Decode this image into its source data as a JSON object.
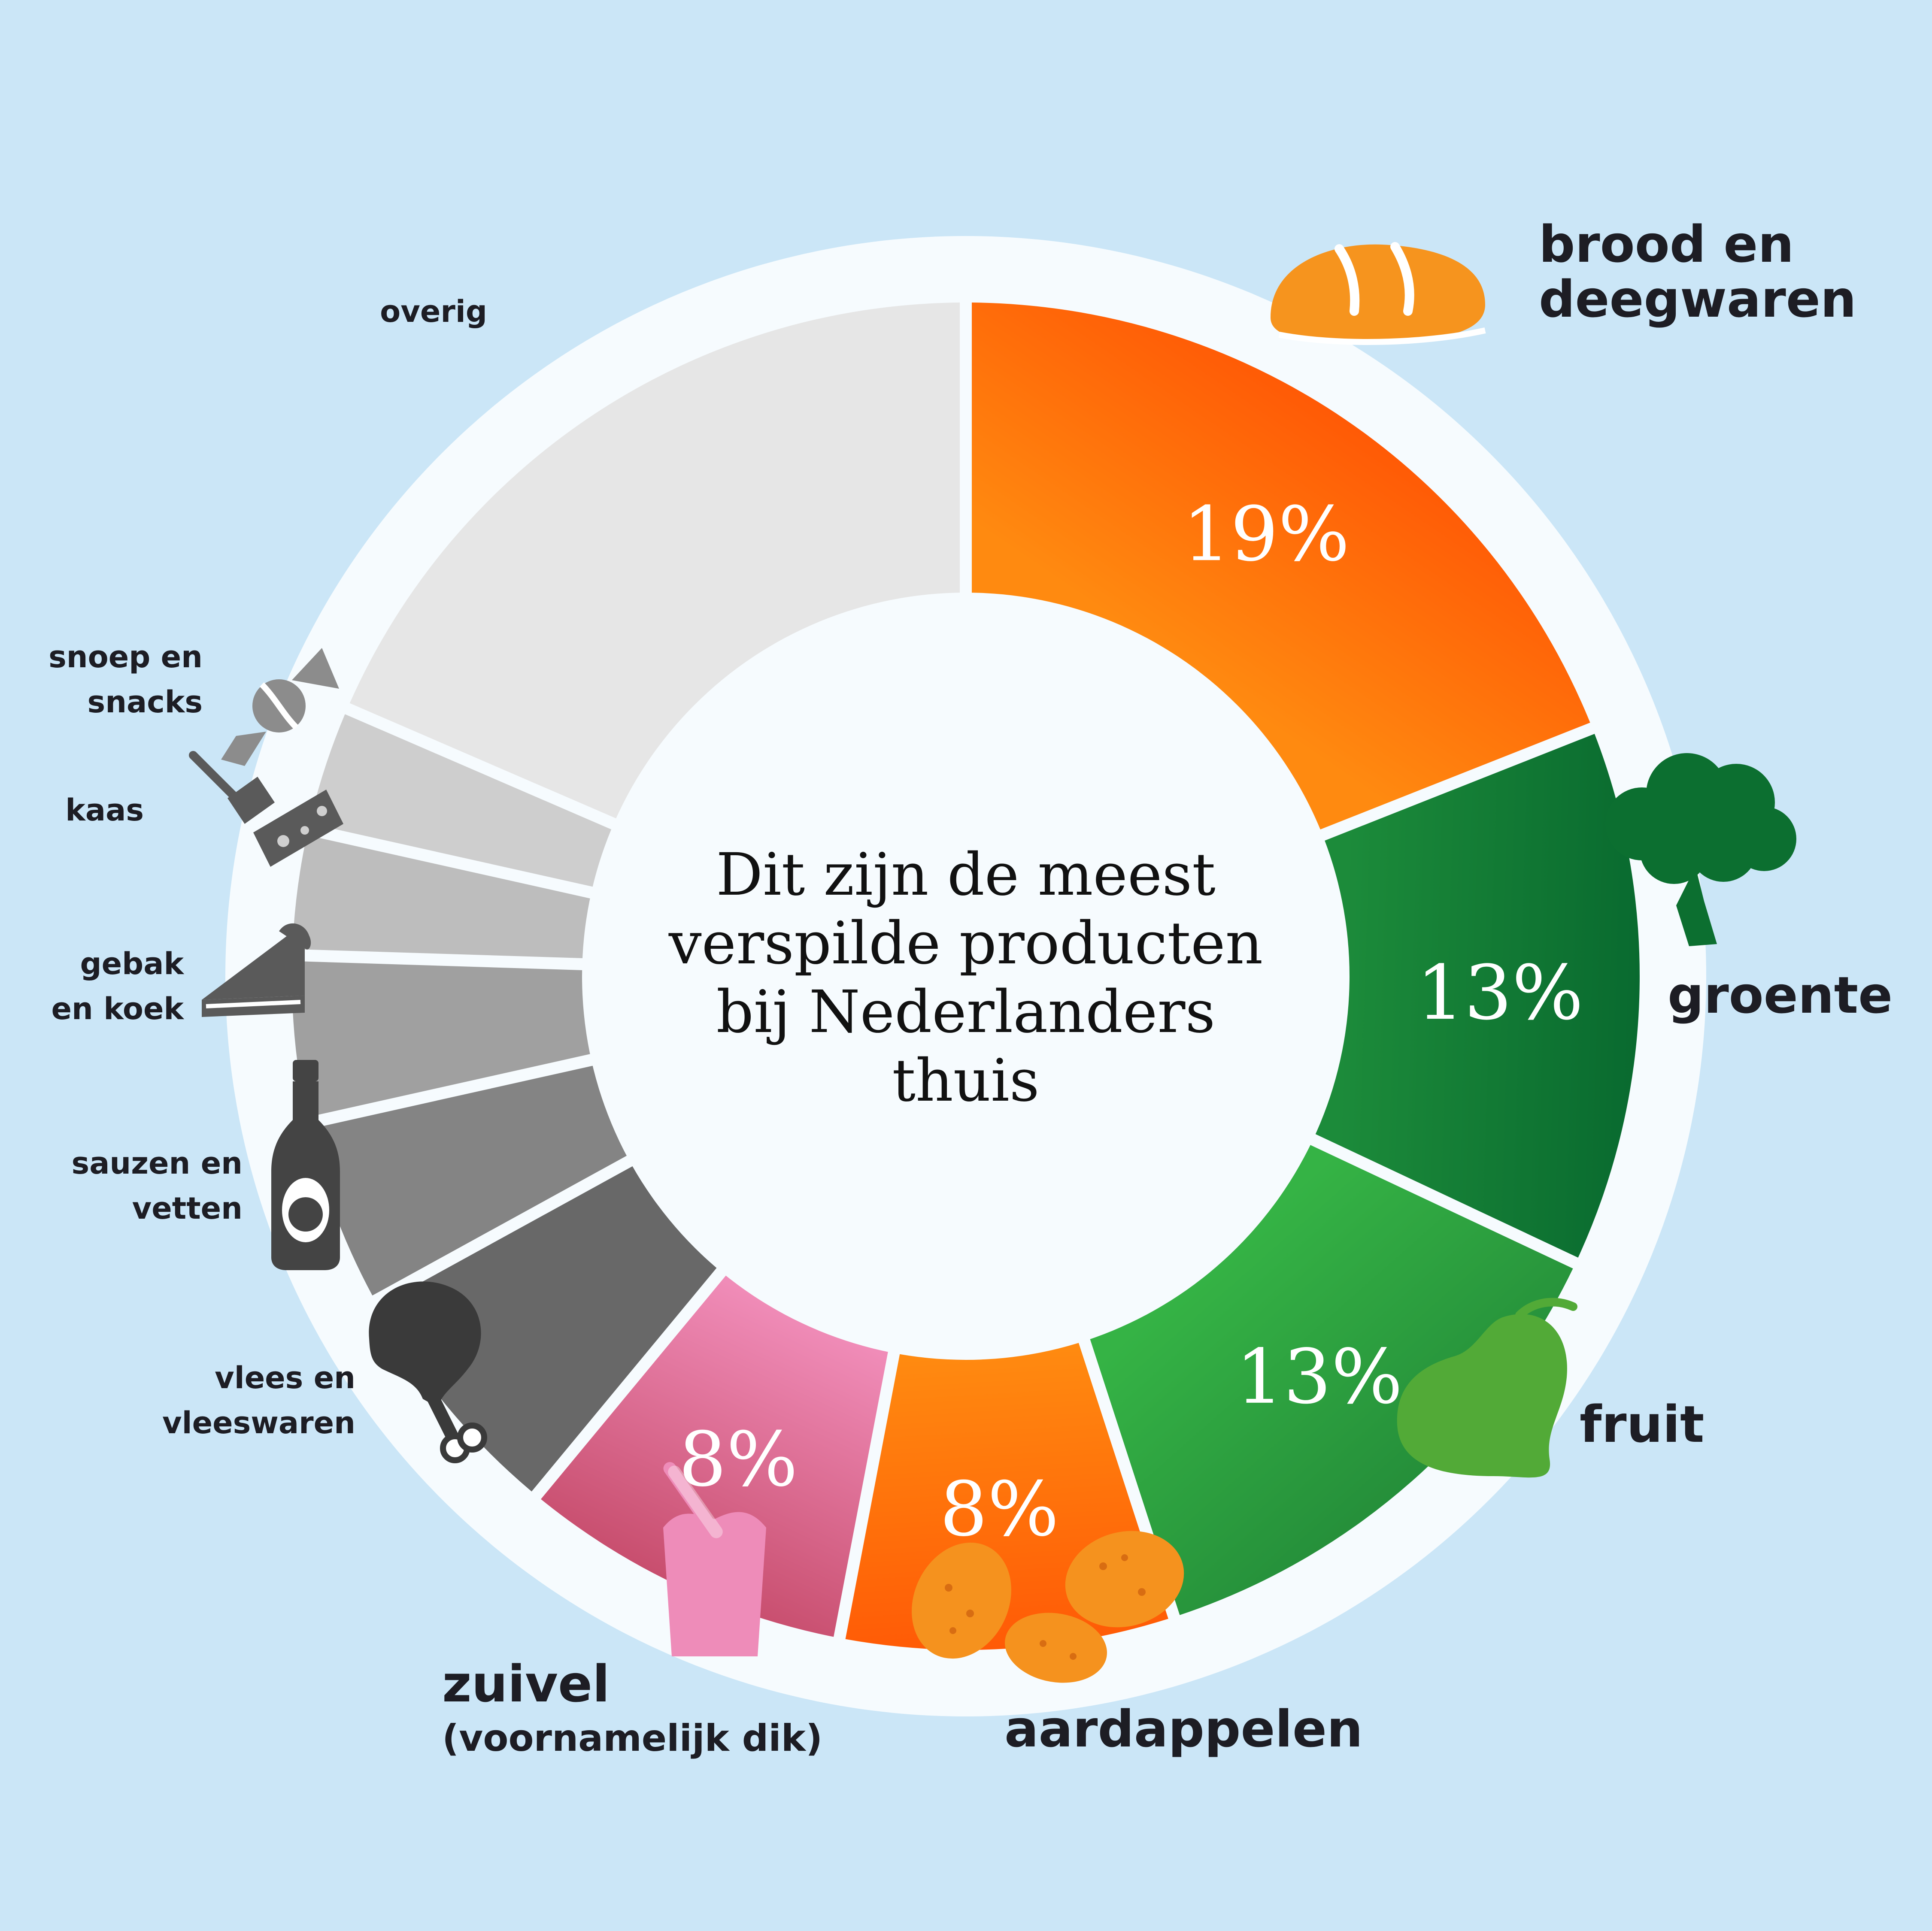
{
  "chart_data": {
    "type": "donut",
    "title_lines": [
      "Dit zijn de meest",
      "verspilde producten",
      "bij Nederlanders",
      "thuis"
    ],
    "segments": [
      {
        "name": "brood en deegwaren",
        "value": 19,
        "label": "19%",
        "label_lines": [
          "brood en",
          "deegwaren"
        ],
        "colors": [
          "#ff8a10",
          "#ff5a06"
        ],
        "icon": "bread-icon"
      },
      {
        "name": "groente",
        "value": 13,
        "label": "13%",
        "label_lines": [
          "groente"
        ],
        "colors": [
          "#1c8b3a",
          "#096a2f"
        ],
        "icon": "broccoli-icon"
      },
      {
        "name": "fruit",
        "value": 13,
        "label": "13%",
        "label_lines": [
          "fruit"
        ],
        "colors": [
          "#35b345",
          "#258f3a"
        ],
        "icon": "pear-icon"
      },
      {
        "name": "aardappelen",
        "value": 8,
        "label": "8%",
        "label_lines": [
          "aardappelen"
        ],
        "colors": [
          "#ff8a10",
          "#ff5a06"
        ],
        "icon": "potato-icon"
      },
      {
        "name": "zuivel (voornamelijk dik)",
        "value": 8,
        "label": "8%",
        "label_lines": [
          "zuivel",
          "(voornamelijk dik)"
        ],
        "colors": [
          "#f08cb8",
          "#c84e6e"
        ],
        "icon": "yogurt-icon"
      },
      {
        "name": "vlees en vleeswaren",
        "value": 6,
        "label": "",
        "label_lines": [
          "vlees en",
          "vleeswaren"
        ],
        "colors": [
          "#686868",
          "#686868"
        ],
        "icon": "drumstick-icon"
      },
      {
        "name": "sauzen en vetten",
        "value": 4.5,
        "label": "",
        "label_lines": [
          "sauzen en",
          "vetten"
        ],
        "colors": [
          "#848484",
          "#848484"
        ],
        "icon": "bottle-icon"
      },
      {
        "name": "gebak en koek",
        "value": 4,
        "label": "",
        "label_lines": [
          "gebak",
          "en koek"
        ],
        "colors": [
          "#a0a0a0",
          "#a0a0a0"
        ],
        "icon": "cake-icon"
      },
      {
        "name": "kaas",
        "value": 3,
        "label": "",
        "label_lines": [
          "kaas"
        ],
        "colors": [
          "#bdbdbd",
          "#bdbdbd"
        ],
        "icon": "cheese-icon"
      },
      {
        "name": "snoep en snacks",
        "value": 3,
        "label": "",
        "label_lines": [
          "snoep en",
          "snacks"
        ],
        "colors": [
          "#cecece",
          "#cecece"
        ],
        "icon": "candy-icon"
      },
      {
        "name": "overig",
        "value": 18.5,
        "label": "",
        "label_lines": [
          "overig"
        ],
        "colors": [
          "#e6e6e6",
          "#e6e6e6"
        ],
        "icon": ""
      }
    ]
  },
  "colors": {
    "background": "#cbe6f7",
    "ring": "#f6fbfe",
    "center": "#f6fbfe"
  }
}
